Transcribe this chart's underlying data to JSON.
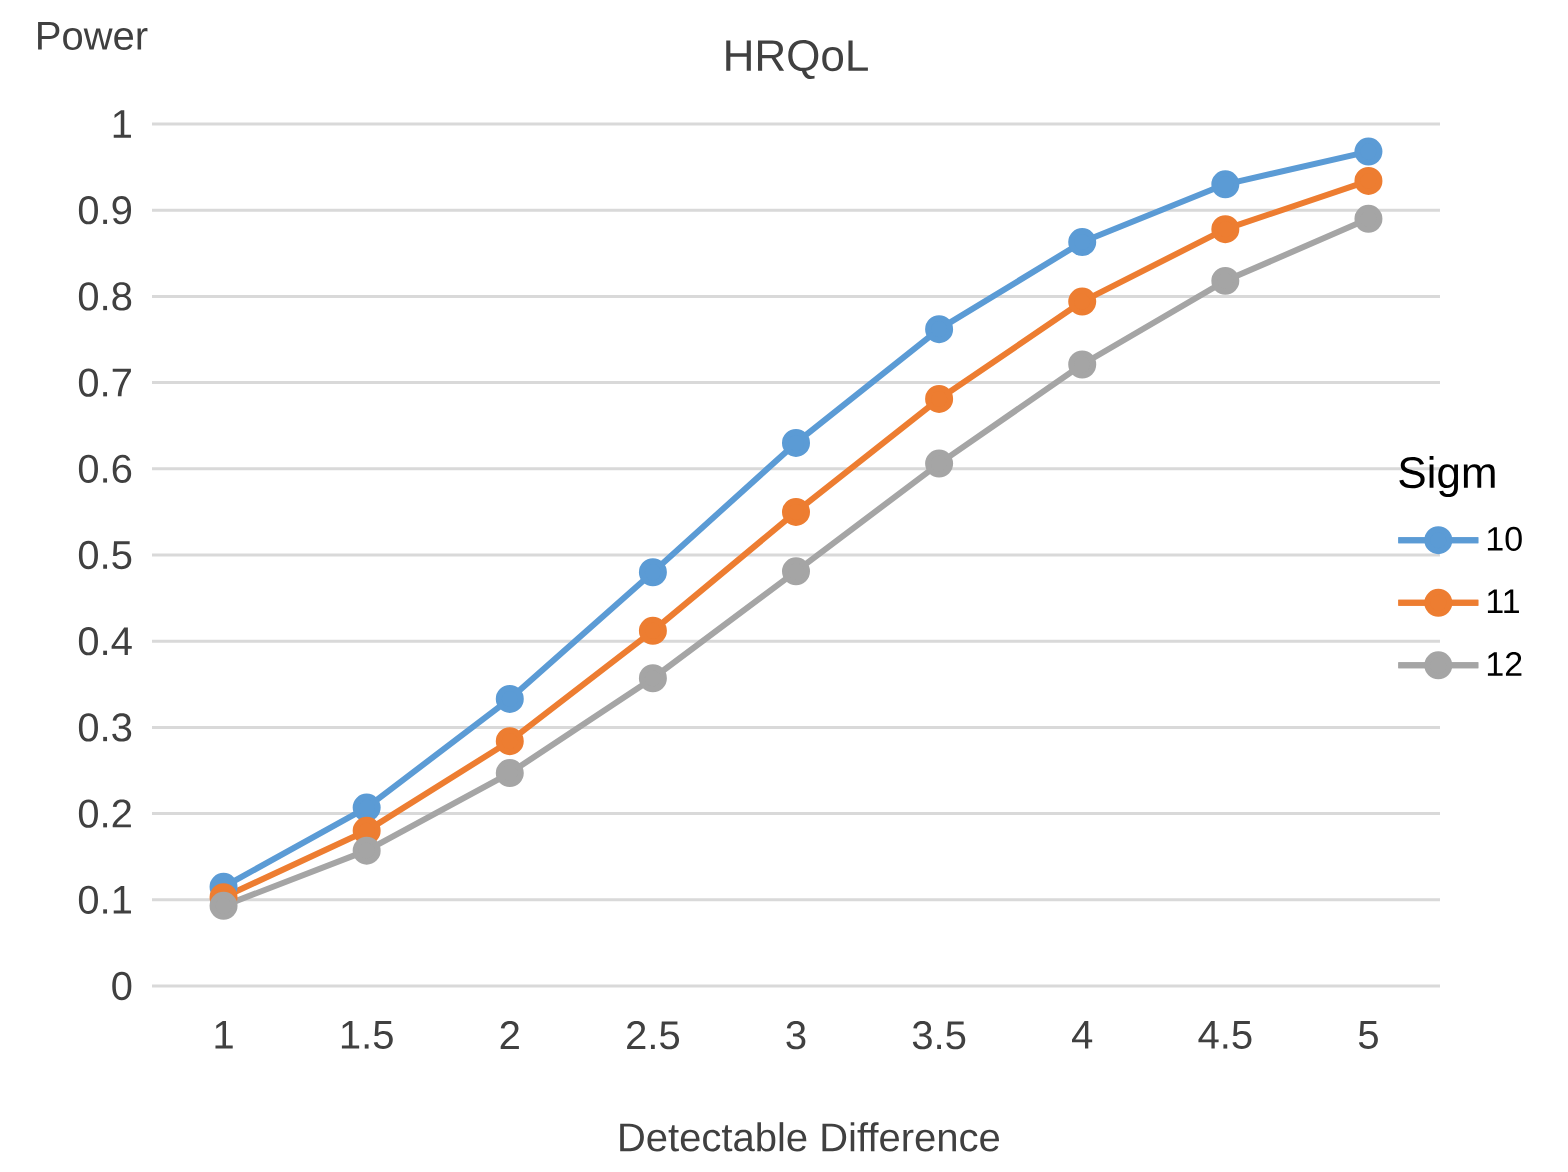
{
  "chart_data": {
    "type": "line",
    "title": "HRQoL",
    "xlabel": "Detectable Difference",
    "ylabel": "Power",
    "legend_title": "Sigm",
    "categories": [
      "1",
      "1.5",
      "2",
      "2.5",
      "3",
      "3.5",
      "4",
      "4.5",
      "5"
    ],
    "series": [
      {
        "name": "10",
        "color": "#5b9bd5",
        "values": [
          0.115,
          0.207,
          0.333,
          0.48,
          0.63,
          0.762,
          0.863,
          0.93,
          0.968
        ]
      },
      {
        "name": "11",
        "color": "#ed7d31",
        "values": [
          0.103,
          0.18,
          0.284,
          0.412,
          0.55,
          0.681,
          0.794,
          0.878,
          0.934
        ]
      },
      {
        "name": "12",
        "color": "#a5a5a5",
        "values": [
          0.093,
          0.157,
          0.247,
          0.357,
          0.481,
          0.606,
          0.721,
          0.818,
          0.89
        ]
      }
    ],
    "ylim": [
      0,
      1
    ],
    "yticks": [
      0,
      0.1,
      0.2,
      0.3,
      0.4,
      0.5,
      0.6,
      0.7,
      0.8,
      0.9,
      1
    ],
    "grid": "y",
    "legend": "right",
    "marker": "circle",
    "line_style": "solid"
  }
}
